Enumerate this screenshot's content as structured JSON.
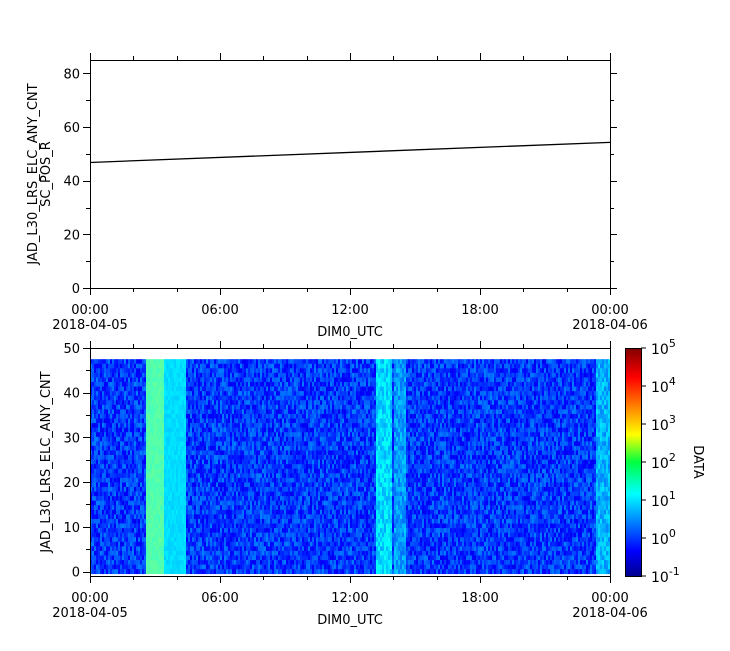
{
  "chart_data": [
    {
      "type": "line",
      "ylabel_lines": [
        "JAD_L30_LRS_ELC_ANY_CNT",
        "SC_POS_R"
      ],
      "xlabel": "DIM0_UTC",
      "ylim": [
        0,
        85
      ],
      "yticks": [
        0,
        20,
        40,
        60,
        80
      ],
      "x_range_hours": [
        0,
        24
      ],
      "xticks": [
        {
          "time": "00:00",
          "date": "2018-04-05"
        },
        {
          "time": "06:00",
          "date": ""
        },
        {
          "time": "12:00",
          "date": ""
        },
        {
          "time": "18:00",
          "date": ""
        },
        {
          "time": "00:00",
          "date": "2018-04-06"
        }
      ],
      "series": [
        {
          "x_hours": [
            0,
            24
          ],
          "values": [
            46.8,
            54.3
          ],
          "color": "#000000"
        }
      ],
      "grid": false
    },
    {
      "type": "heatmap",
      "ylabel": "JAD_L30_LRS_ELC_ANY_CNT",
      "xlabel": "DIM0_UTC",
      "ylim": [
        -1,
        50
      ],
      "yticks": [
        0,
        10,
        20,
        30,
        40,
        50
      ],
      "bins_y": [
        0,
        47
      ],
      "x_range_hours": [
        0,
        24
      ],
      "xticks": [
        {
          "time": "00:00",
          "date": "2018-04-05"
        },
        {
          "time": "06:00",
          "date": ""
        },
        {
          "time": "12:00",
          "date": ""
        },
        {
          "time": "18:00",
          "date": ""
        },
        {
          "time": "00:00",
          "date": "2018-04-06"
        }
      ],
      "colorbar": {
        "label": "DATA",
        "scale": "log",
        "range": [
          0.1,
          100000
        ],
        "ticks": [
          {
            "base": "10",
            "exp": "5"
          },
          {
            "base": "10",
            "exp": "4"
          },
          {
            "base": "10",
            "exp": "3"
          },
          {
            "base": "10",
            "exp": "2"
          },
          {
            "base": "10",
            "exp": "1"
          },
          {
            "base": "10",
            "exp": "0"
          },
          {
            "base": "10",
            "exp": "-1"
          }
        ]
      },
      "bright_bands_hours": [
        {
          "start": 2.55,
          "end": 3.4,
          "level": 1.2
        },
        {
          "start": 3.4,
          "end": 4.4,
          "level": 0.9
        },
        {
          "start": 13.2,
          "end": 13.9,
          "level": 0.7
        },
        {
          "start": 14.0,
          "end": 14.6,
          "level": 0.55
        },
        {
          "start": 23.4,
          "end": 24.0,
          "level": 0.6
        }
      ],
      "background_level": 0.1
    }
  ]
}
